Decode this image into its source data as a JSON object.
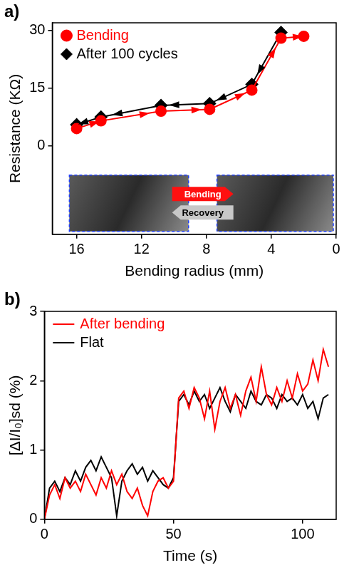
{
  "chart_data": [
    {
      "type": "line",
      "panel": "a)",
      "x_label": "Bending radius (mm)",
      "y_label": "Resistance (KΩ)",
      "xlim": [
        17.5,
        0
      ],
      "xticks": [
        16,
        12,
        8,
        4,
        0
      ],
      "ylim": [
        -23,
        32
      ],
      "yticks": [
        0,
        15,
        30
      ],
      "grid": false,
      "legend": "upper left",
      "annotations": [
        "Bending",
        "Recovery"
      ],
      "series": [
        {
          "name": "Bending",
          "color": "#ff0000",
          "marker": "circle",
          "line_style": "arrow",
          "x": [
            16,
            14.5,
            10.8,
            7.8,
            5.2,
            3.4,
            2
          ],
          "values": [
            4.5,
            6.5,
            9,
            9.5,
            14.5,
            28,
            28.5
          ]
        },
        {
          "name": "After 100 cycles",
          "color": "#000000",
          "marker": "diamond",
          "line_style": "arrow",
          "x": [
            3.4,
            5.2,
            7.8,
            10.8,
            14.5,
            16
          ],
          "values": [
            29.5,
            16,
            11,
            10.5,
            7.5,
            5.5
          ]
        }
      ]
    },
    {
      "type": "line",
      "panel": "b)",
      "x_label": "Time (s)",
      "y_label": "[ΔI/I₀]sd (%)",
      "xlim": [
        0,
        113
      ],
      "xticks": [
        0,
        50,
        100
      ],
      "ylim": [
        0,
        3
      ],
      "yticks": [
        0,
        1,
        2,
        3
      ],
      "grid": false,
      "legend": "upper left",
      "x": [
        0,
        2,
        4,
        6,
        8,
        10,
        12,
        14,
        16,
        18,
        20,
        22,
        24,
        26,
        28,
        30,
        32,
        34,
        36,
        38,
        40,
        42,
        44,
        46,
        48,
        50,
        52,
        54,
        56,
        58,
        60,
        62,
        64,
        66,
        68,
        70,
        72,
        74,
        76,
        78,
        80,
        82,
        84,
        86,
        88,
        90,
        92,
        94,
        96,
        98,
        100,
        102,
        104,
        106,
        108,
        110
      ],
      "series": [
        {
          "name": "After bending",
          "color": "#ff0000",
          "line_style": "solid",
          "values": [
            0,
            0.35,
            0.5,
            0.3,
            0.6,
            0.45,
            0.55,
            0.4,
            0.65,
            0.5,
            0.35,
            0.6,
            0.45,
            0.7,
            0.5,
            0.65,
            0.4,
            0.3,
            0.45,
            0.2,
            0.05,
            0.4,
            0.55,
            0.6,
            0.45,
            0.55,
            1.75,
            1.85,
            1.6,
            1.9,
            1.75,
            1.45,
            1.85,
            1.3,
            1.7,
            1.9,
            1.6,
            1.8,
            1.5,
            1.85,
            2.05,
            1.7,
            2.2,
            1.8,
            1.65,
            1.9,
            1.7,
            2.0,
            1.75,
            2.1,
            1.85,
            1.95,
            2.3,
            2.0,
            2.45,
            2.2
          ]
        },
        {
          "name": "Flat",
          "color": "#000000",
          "line_style": "solid",
          "values": [
            0,
            0.45,
            0.55,
            0.4,
            0.6,
            0.5,
            0.7,
            0.55,
            0.75,
            0.85,
            0.7,
            0.9,
            0.75,
            0.6,
            0.05,
            0.55,
            0.7,
            0.8,
            0.65,
            0.75,
            0.55,
            0.7,
            0.6,
            0.5,
            0.45,
            0.6,
            1.7,
            1.8,
            1.65,
            1.85,
            1.7,
            1.8,
            1.6,
            1.75,
            1.9,
            1.7,
            1.55,
            1.8,
            1.7,
            1.6,
            1.85,
            1.7,
            1.65,
            1.8,
            1.75,
            1.6,
            1.8,
            1.7,
            1.75,
            1.65,
            1.8,
            1.6,
            1.7,
            1.45,
            1.75,
            1.8
          ]
        }
      ]
    }
  ]
}
